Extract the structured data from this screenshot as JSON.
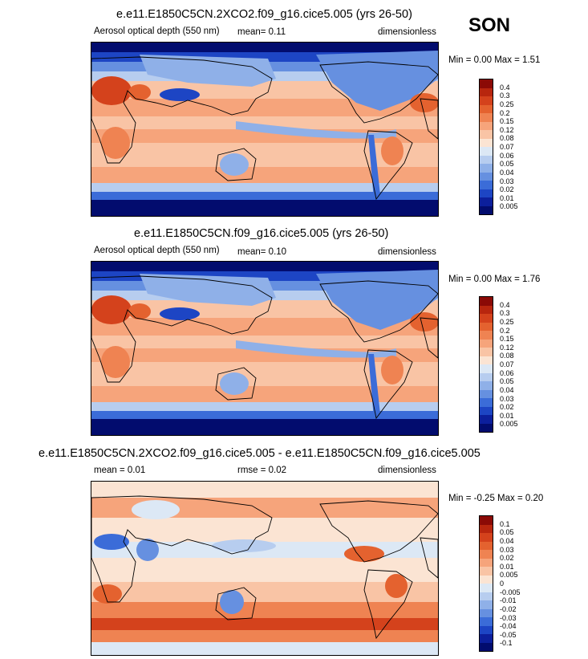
{
  "season": "SON",
  "panels": [
    {
      "title": "e.e11.E1850C5CN.2XCO2.f09_g16.cice5.005 (yrs 26-50)",
      "left_label": "Aerosol optical depth (550 nm)",
      "mid_label": "mean=  0.11",
      "units": "dimensionless",
      "minmax": "Min =  0.00 Max =  1.51",
      "kind": "abs"
    },
    {
      "title": "e.e11.E1850C5CN.f09_g16.cice5.005 (yrs 26-50)",
      "left_label": "Aerosol optical depth (550 nm)",
      "mid_label": "mean=  0.10",
      "units": "dimensionless",
      "minmax": "Min =  0.00 Max =  1.76",
      "kind": "abs"
    },
    {
      "title": "e.e11.E1850C5CN.2XCO2.f09_g16.cice5.005 - e.e11.E1850C5CN.f09_g16.cice5.005",
      "left_label": "mean =  0.01",
      "mid_label": "rmse =  0.02",
      "units": "dimensionless",
      "minmax": "Min = -0.25 Max =  0.20",
      "kind": "diff"
    }
  ],
  "colorbars": {
    "abs": {
      "labels": [
        "0.4",
        "0.3",
        "0.25",
        "0.2",
        "0.15",
        "0.12",
        "0.08",
        "0.07",
        "0.06",
        "0.05",
        "0.04",
        "0.03",
        "0.02",
        "0.01",
        "0.005"
      ],
      "colors": [
        "#8b0a06",
        "#b8260e",
        "#d4421c",
        "#e4622f",
        "#ef8352",
        "#f6a47b",
        "#f9c4a5",
        "#fbe4d3",
        "#dce8f5",
        "#b7cdef",
        "#8fb0e8",
        "#6690e0",
        "#3b6cd8",
        "#1d45c4",
        "#0c1f9c",
        "#020c6e"
      ]
    },
    "diff": {
      "labels": [
        "0.1",
        "0.05",
        "0.04",
        "0.03",
        "0.02",
        "0.01",
        "0.005",
        "0",
        "-0.005",
        "-0.01",
        "-0.02",
        "-0.03",
        "-0.04",
        "-0.05",
        "-0.1"
      ],
      "colors": [
        "#8b0a06",
        "#b8260e",
        "#d4421c",
        "#e4622f",
        "#ef8352",
        "#f6a47b",
        "#f9c4a5",
        "#fbe4d3",
        "#dce8f5",
        "#b7cdef",
        "#8fb0e8",
        "#6690e0",
        "#3b6cd8",
        "#1d45c4",
        "#0c1f9c",
        "#020c6e"
      ]
    }
  },
  "chart_data": [
    {
      "type": "heatmap",
      "title": "e.e11.E1850C5CN.2XCO2.f09_g16.cice5.005 (yrs 26-50)",
      "variable": "Aerosol optical depth (550 nm)",
      "units": "dimensionless",
      "mean": 0.11,
      "min": 0.0,
      "max": 1.51,
      "levels": [
        0.005,
        0.01,
        0.02,
        0.03,
        0.04,
        0.05,
        0.06,
        0.07,
        0.08,
        0.12,
        0.15,
        0.2,
        0.25,
        0.3,
        0.4
      ]
    },
    {
      "type": "heatmap",
      "title": "e.e11.E1850C5CN.f09_g16.cice5.005 (yrs 26-50)",
      "variable": "Aerosol optical depth (550 nm)",
      "units": "dimensionless",
      "mean": 0.1,
      "min": 0.0,
      "max": 1.76,
      "levels": [
        0.005,
        0.01,
        0.02,
        0.03,
        0.04,
        0.05,
        0.06,
        0.07,
        0.08,
        0.12,
        0.15,
        0.2,
        0.25,
        0.3,
        0.4
      ]
    },
    {
      "type": "heatmap",
      "title": "e.e11.E1850C5CN.2XCO2.f09_g16.cice5.005 - e.e11.E1850C5CN.f09_g16.cice5.005",
      "units": "dimensionless",
      "mean": 0.01,
      "rmse": 0.02,
      "min": -0.25,
      "max": 0.2,
      "levels": [
        -0.1,
        -0.05,
        -0.04,
        -0.03,
        -0.02,
        -0.01,
        -0.005,
        0,
        0.005,
        0.01,
        0.02,
        0.03,
        0.04,
        0.05,
        0.1
      ]
    }
  ]
}
